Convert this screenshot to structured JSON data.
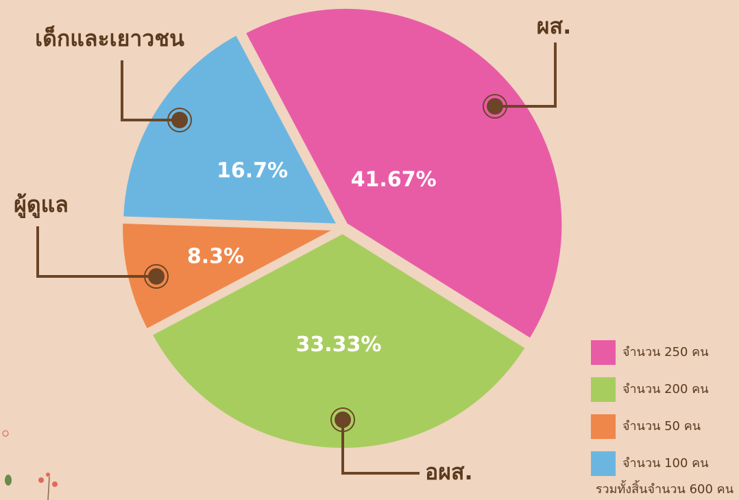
{
  "chart_data": {
    "type": "pie",
    "categories": [
      "ผส.",
      "อผส.",
      "ผู้ดูแล",
      "เด็กและเยาวชน"
    ],
    "values": [
      41.67,
      33.33,
      8.3,
      16.7
    ],
    "value_labels": [
      "41.67%",
      "33.33%",
      "8.3%",
      "16.7%"
    ],
    "colors": [
      "#e85ca6",
      "#a8cd5f",
      "#ef874a",
      "#6bb6e1"
    ],
    "legend": [
      "จำนวน 250 คน",
      "จำนวน 200 คน",
      "จำนวน   50 คน",
      "จำนวน 100 คน"
    ],
    "total_label": "รวมทั้งสิ้นจำนวน 600 คน"
  }
}
